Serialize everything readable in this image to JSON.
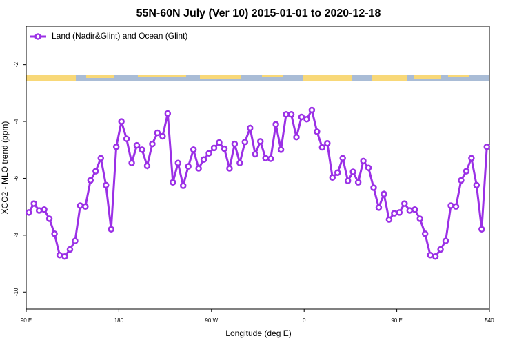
{
  "chart_data": {
    "type": "line",
    "title": "55N-60N July (Ver 10)   2015-01-01 to 2020-12-18",
    "x_label": "Longitude (deg E)",
    "y_label": "XCO2 - MLO trend (ppm)",
    "x": [
      92.5,
      97.5,
      102.5,
      107.5,
      112.5,
      117.5,
      122.5,
      127.5,
      132.5,
      137.5,
      142.5,
      147.5,
      152.5,
      157.5,
      162.5,
      167.5,
      172.5,
      177.5,
      182.5,
      187.5,
      192.5,
      197.5,
      202.5,
      207.5,
      212.5,
      217.5,
      222.5,
      227.5,
      232.5,
      237.5,
      242.5,
      247.5,
      252.5,
      257.5,
      262.5,
      267.5,
      272.5,
      277.5,
      282.5,
      287.5,
      292.5,
      297.5,
      302.5,
      307.5,
      312.5,
      317.5,
      322.5,
      327.5,
      332.5,
      337.5,
      342.5,
      347.5,
      352.5,
      357.5,
      362.5,
      367.5,
      372.5,
      377.5,
      382.5,
      387.5,
      392.5,
      397.5,
      402.5,
      407.5,
      412.5,
      417.5,
      422.5,
      427.5,
      432.5,
      437.5,
      442.5,
      447.5,
      452.5,
      457.5,
      462.5,
      467.5,
      472.5,
      477.5,
      482.5,
      487.5,
      492.5,
      497.5,
      502.5,
      507.5,
      512.5,
      517.5,
      522.5,
      527.5,
      532.5,
      537.5
    ],
    "series": [
      {
        "name": "Land (Nadir&Glint) and Ocean (Glint)",
        "color": "#9b30e6",
        "values": [
          -7.2,
          -6.89,
          -7.13,
          -7.1,
          -7.42,
          -7.95,
          -8.7,
          -8.75,
          -8.5,
          -8.2,
          -6.96,
          -6.99,
          -6.07,
          -5.75,
          -5.29,
          -6.24,
          -7.79,
          -4.89,
          -4.0,
          -4.61,
          -5.46,
          -4.84,
          -4.99,
          -5.56,
          -4.79,
          -4.4,
          -4.52,
          -3.72,
          -6.14,
          -5.46,
          -6.26,
          -5.58,
          -4.99,
          -5.65,
          -5.34,
          -5.12,
          -4.93,
          -4.74,
          -4.96,
          -5.65,
          -4.79,
          -5.46,
          -4.72,
          -4.23,
          -5.15,
          -4.7,
          -5.29,
          -5.31,
          -4.1,
          -4.99,
          -3.75,
          -3.75,
          -4.55,
          -3.84,
          -3.92,
          -3.6,
          -4.36,
          -4.91,
          -4.77,
          -5.97,
          -5.8,
          -5.29,
          -6.09,
          -5.77,
          -6.14,
          -5.39,
          -5.63,
          -6.33,
          -7.03,
          -6.55,
          -7.45,
          -7.23,
          -7.2,
          -6.89,
          -7.13,
          -7.1,
          -7.42,
          -7.95,
          -8.7,
          -8.75,
          -8.5,
          -8.2,
          -6.96,
          -6.99,
          -6.07,
          -5.75,
          -5.29,
          -6.24,
          -7.79,
          -4.89
        ]
      }
    ],
    "xlim": [
      90,
      540
    ],
    "xticks": [
      {
        "value": 90,
        "label": "90 E"
      },
      180,
      {
        "value": 270,
        "label": "90 W"
      },
      {
        "value": 360,
        "label": "0"
      },
      {
        "value": 450,
        "label": "90 E"
      },
      540
    ],
    "ylim": [
      -10.6,
      -0.65
    ],
    "yticks": [
      -2,
      -4,
      -6,
      -8,
      -10
    ],
    "legend": "top-left"
  }
}
